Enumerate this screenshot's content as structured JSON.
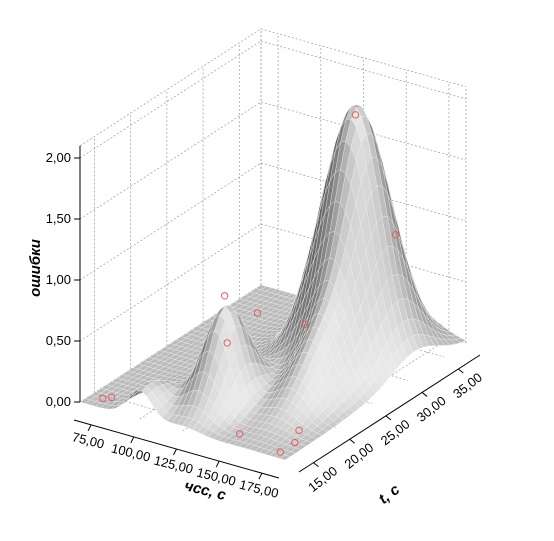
{
  "chart_data": {
    "type": "surface3d",
    "xlabel": "чсс, с",
    "ylabel": "t, с",
    "zlabel": "ошибки",
    "x_ticks": [
      "75,00",
      "100,00",
      "125,00",
      "150,00",
      "175,00"
    ],
    "y_ticks": [
      "15,00",
      "20,00",
      "25,00",
      "30,00",
      "35,00"
    ],
    "z_ticks": [
      "0,00",
      "0,50",
      "1,00",
      "1,50",
      "2,00"
    ],
    "xlim": [
      65,
      185
    ],
    "ylim": [
      13,
      38
    ],
    "zlim": [
      0,
      2.1
    ],
    "grid": true,
    "surface_color": "#9e9e9e",
    "marker_color": "#e06060",
    "points": [
      {
        "x": 72,
        "y": 14.5,
        "z": 0.0
      },
      {
        "x": 75,
        "y": 15,
        "z": 0.0
      },
      {
        "x": 150,
        "y": 31,
        "z": 2.0
      },
      {
        "x": 120,
        "y": 20,
        "z": 0.82
      },
      {
        "x": 135,
        "y": 21,
        "z": 0.7
      },
      {
        "x": 130,
        "y": 18,
        "z": 0.55
      },
      {
        "x": 150,
        "y": 24,
        "z": 0.55
      },
      {
        "x": 165,
        "y": 33,
        "z": 1.0
      },
      {
        "x": 150,
        "y": 15,
        "z": 0.0
      },
      {
        "x": 172,
        "y": 18,
        "z": 0.0
      },
      {
        "x": 178,
        "y": 16,
        "z": 0.0
      },
      {
        "x": 178,
        "y": 14,
        "z": 0.0
      }
    ]
  }
}
